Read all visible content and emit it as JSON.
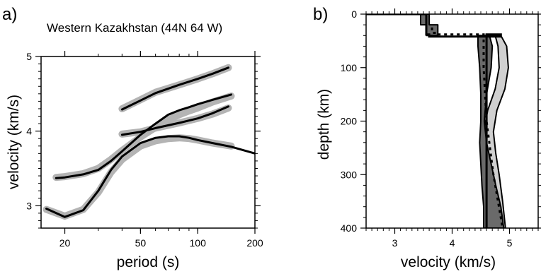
{
  "chart_data": [
    {
      "panel_label": "a)",
      "type": "line",
      "title": "Western Kazakhstan (44N 64 W)",
      "xlabel": "period (s)",
      "ylabel": "velocity (km/s)",
      "x_scale": "log",
      "xlim": [
        15,
        200
      ],
      "ylim": [
        2.7,
        5.0
      ],
      "xticks": [
        20,
        50,
        100,
        200
      ],
      "yticks": [
        3,
        4,
        5
      ],
      "series": [
        {
          "style": "observed-band",
          "x": [
            18,
            20,
            25,
            30,
            35,
            40,
            50,
            60,
            70,
            80,
            90,
            100,
            120,
            150
          ],
          "y": [
            3.38,
            3.39,
            3.43,
            3.5,
            3.62,
            3.74,
            3.92,
            4.05,
            4.15,
            4.22,
            4.27,
            4.31,
            4.39,
            4.47
          ]
        },
        {
          "style": "observed-band",
          "x": [
            16,
            20,
            25,
            30,
            35,
            40,
            50,
            60,
            70,
            80,
            90,
            100,
            120,
            150
          ],
          "y": [
            2.95,
            2.86,
            2.95,
            3.18,
            3.45,
            3.62,
            3.8,
            3.87,
            3.9,
            3.91,
            3.9,
            3.88,
            3.84,
            3.8
          ]
        },
        {
          "style": "observed-band",
          "x": [
            40,
            50,
            60,
            80,
            100,
            120,
            145
          ],
          "y": [
            4.3,
            4.42,
            4.52,
            4.62,
            4.7,
            4.77,
            4.85
          ]
        },
        {
          "style": "observed-band",
          "x": [
            40,
            50,
            60,
            80,
            100,
            120,
            145
          ],
          "y": [
            3.96,
            3.99,
            4.04,
            4.11,
            4.17,
            4.23,
            4.31
          ]
        },
        {
          "style": "predicted",
          "x": [
            18,
            20,
            25,
            30,
            35,
            40,
            50,
            60,
            70,
            80,
            90,
            100,
            120,
            150
          ],
          "y": [
            3.37,
            3.38,
            3.42,
            3.48,
            3.6,
            3.73,
            3.95,
            4.1,
            4.22,
            4.28,
            4.32,
            4.36,
            4.42,
            4.49
          ]
        },
        {
          "style": "predicted",
          "x": [
            16,
            20,
            25,
            30,
            35,
            40,
            50,
            60,
            70,
            80,
            90,
            100,
            120,
            150,
            200
          ],
          "y": [
            2.96,
            2.85,
            2.94,
            3.2,
            3.48,
            3.66,
            3.84,
            3.91,
            3.93,
            3.93,
            3.91,
            3.88,
            3.84,
            3.79,
            3.7
          ]
        },
        {
          "style": "predicted",
          "x": [
            40,
            50,
            60,
            80,
            100,
            120,
            145
          ],
          "y": [
            4.29,
            4.41,
            4.51,
            4.62,
            4.7,
            4.77,
            4.85
          ]
        },
        {
          "style": "predicted",
          "x": [
            40,
            50,
            60,
            80,
            100,
            120,
            145
          ],
          "y": [
            3.95,
            3.99,
            4.04,
            4.11,
            4.17,
            4.24,
            4.33
          ]
        }
      ]
    },
    {
      "panel_label": "b)",
      "type": "line",
      "xlabel": "velocity (km/s)",
      "ylabel": "depth (km)",
      "xlim": [
        2.5,
        5.5
      ],
      "ylim": [
        400,
        0
      ],
      "xticks": [
        3,
        4,
        5
      ],
      "yticks": [
        0,
        100,
        200,
        300,
        400
      ],
      "series": [
        {
          "style": "light-envelope",
          "outer": {
            "x": [
              4.85,
              4.95,
              4.98,
              4.92,
              4.78,
              4.72,
              4.76,
              4.82,
              4.88,
              4.93
            ],
            "y": [
              40,
              60,
              100,
              140,
              180,
              220,
              260,
              300,
              350,
              400
            ]
          },
          "inner": {
            "x": [
              4.75,
              4.8,
              4.82,
              4.75,
              4.62,
              4.55,
              4.6,
              4.68,
              4.76,
              4.82
            ],
            "y": [
              40,
              60,
              100,
              140,
              180,
              220,
              260,
              300,
              350,
              400
            ]
          }
        },
        {
          "style": "dark-envelope",
          "outer": {
            "x": [
              4.65,
              4.7,
              4.68,
              4.6,
              4.56,
              4.6,
              4.68,
              4.76,
              4.85,
              4.9
            ],
            "y": [
              40,
              60,
              100,
              150,
              200,
              240,
              280,
              320,
              360,
              400
            ]
          },
          "inner": {
            "x": [
              4.45,
              4.45,
              4.48,
              4.5,
              4.5,
              4.48,
              4.5,
              4.52,
              4.55,
              4.55
            ],
            "y": [
              40,
              60,
              100,
              150,
              200,
              240,
              280,
              320,
              360,
              400
            ]
          }
        },
        {
          "style": "dark-envelope",
          "outer": {
            "x": [
              3.6,
              3.6,
              3.75,
              3.75
            ],
            "y": [
              0,
              20,
              20,
              40
            ]
          },
          "inner": {
            "x": [
              3.45,
              3.45,
              3.55,
              3.55
            ],
            "y": [
              0,
              20,
              20,
              40
            ]
          }
        },
        {
          "style": "model",
          "x": [
            2.5,
            3.55,
            3.55,
            3.6,
            3.6,
            4.85,
            4.85,
            4.6,
            4.6
          ],
          "y": [
            0,
            0,
            38,
            38,
            42,
            42,
            38,
            38,
            400
          ]
        },
        {
          "style": "reference-dotted",
          "x": [
            3.65,
            3.65,
            3.75,
            3.75,
            4.55,
            4.55,
            4.6,
            4.72,
            4.88
          ],
          "y": [
            25,
            35,
            35,
            38,
            38,
            100,
            200,
            300,
            400
          ]
        }
      ]
    }
  ]
}
